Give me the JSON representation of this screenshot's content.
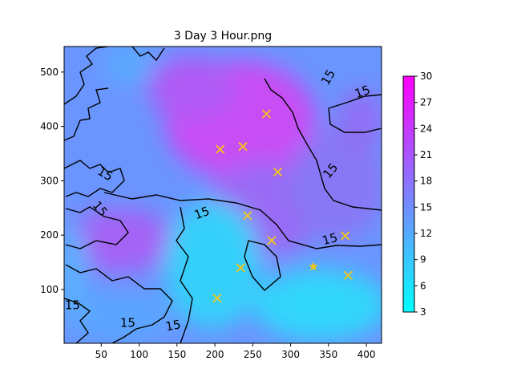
{
  "chart_data": {
    "type": "heatmap",
    "title": "3 Day 3 Hour.png",
    "xlabel": "",
    "ylabel": "",
    "xlim": [
      1,
      420
    ],
    "ylim": [
      1,
      547
    ],
    "x_ticks": [
      50,
      100,
      150,
      200,
      250,
      300,
      350,
      400
    ],
    "y_ticks": [
      100,
      200,
      300,
      400,
      500
    ],
    "grid": false,
    "colorbar": {
      "ticks": [
        3,
        6,
        9,
        12,
        15,
        18,
        21,
        24,
        27,
        30
      ],
      "range": [
        3,
        30
      ],
      "colormap": "cool",
      "colors": [
        "#00ffff",
        "#ff00ff"
      ]
    },
    "contour_level": 15,
    "contour_labels": [
      {
        "text": "15",
        "x": 350,
        "y": 490,
        "angle": -60
      },
      {
        "text": "15",
        "x": 395,
        "y": 463,
        "angle": -20
      },
      {
        "text": "15",
        "x": 183,
        "y": 240,
        "angle": -20
      },
      {
        "text": "15",
        "x": 353,
        "y": 318,
        "angle": -50
      },
      {
        "text": "15",
        "x": 352,
        "y": 192,
        "angle": -15
      },
      {
        "text": "15",
        "x": 55,
        "y": 312,
        "angle": 30
      },
      {
        "text": "15",
        "x": 48,
        "y": 248,
        "angle": 50
      },
      {
        "text": "15",
        "x": 12,
        "y": 70,
        "angle": 0
      },
      {
        "text": "15",
        "x": 85,
        "y": 38,
        "angle": 0
      },
      {
        "text": "15",
        "x": 145,
        "y": 33,
        "angle": -10
      }
    ],
    "markers": {
      "color": "#f5c518",
      "x_points": [
        {
          "x": 268,
          "y": 423
        },
        {
          "x": 207,
          "y": 358
        },
        {
          "x": 237,
          "y": 363
        },
        {
          "x": 283,
          "y": 316
        },
        {
          "x": 243,
          "y": 236
        },
        {
          "x": 275,
          "y": 190
        },
        {
          "x": 372,
          "y": 199
        },
        {
          "x": 234,
          "y": 140
        },
        {
          "x": 376,
          "y": 126
        },
        {
          "x": 203,
          "y": 84
        }
      ],
      "star_points": [
        {
          "x": 330,
          "y": 142
        }
      ]
    }
  }
}
